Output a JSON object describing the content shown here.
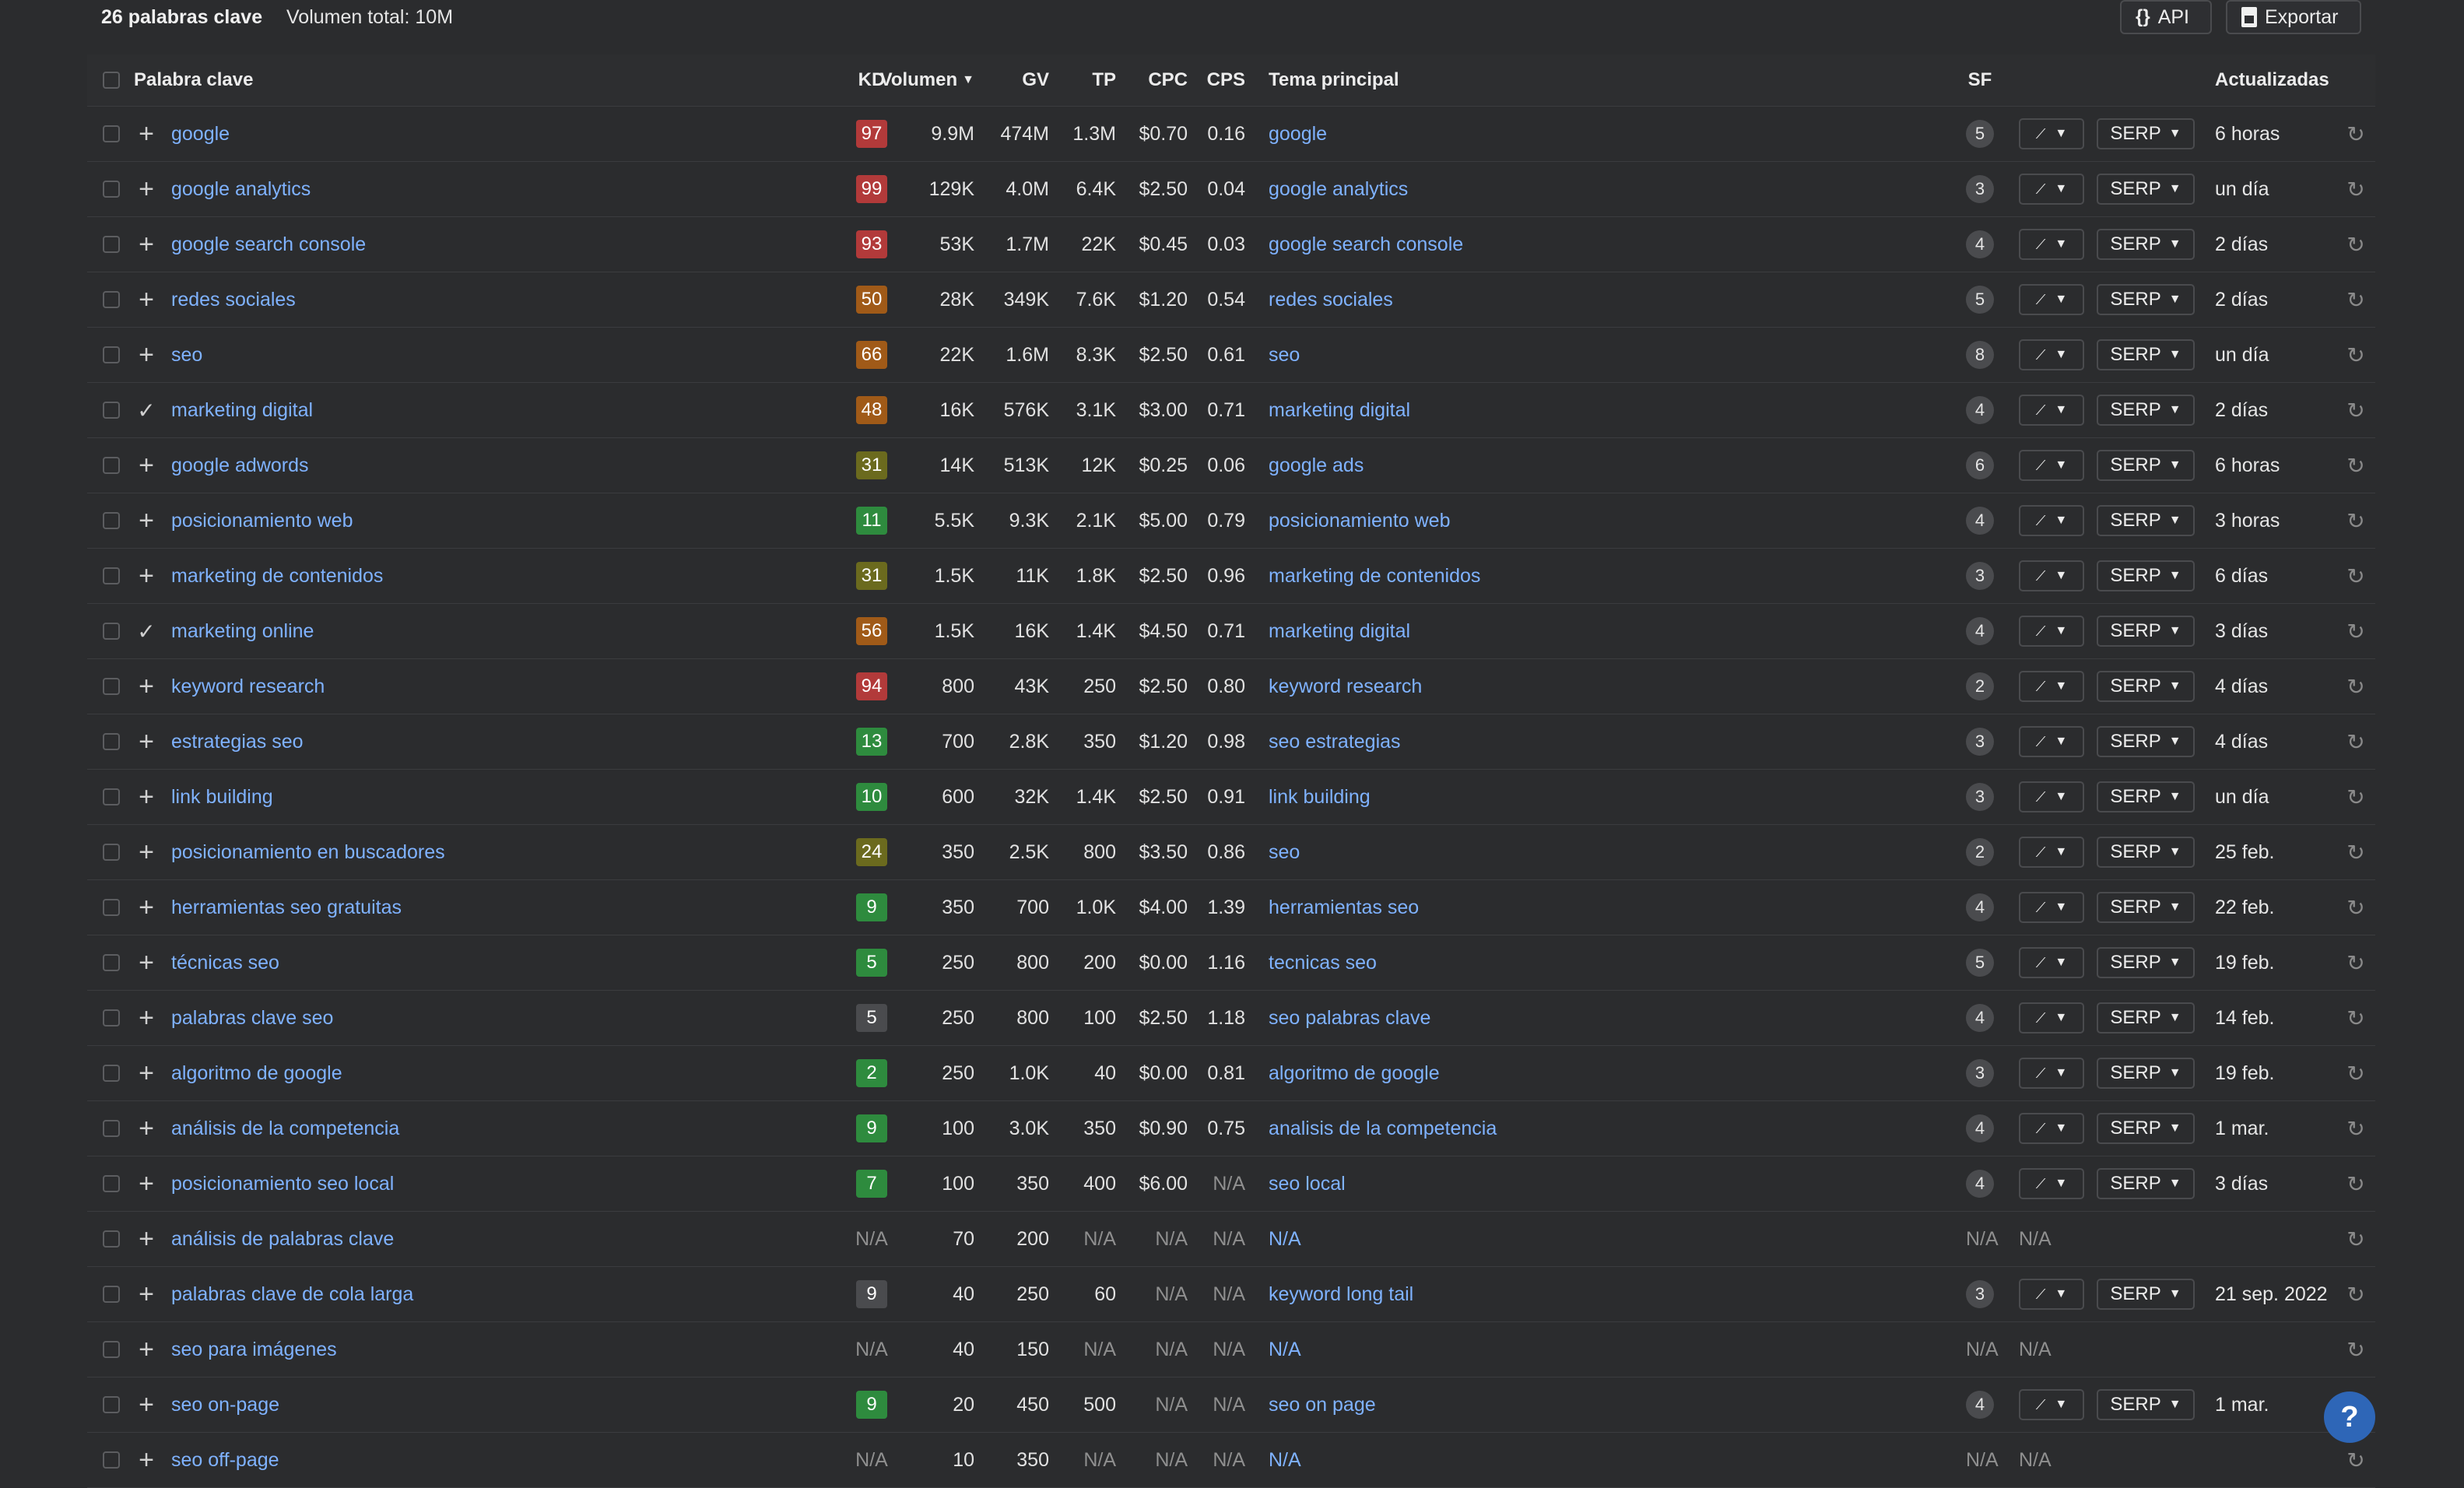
{
  "toolbar": {
    "keyword_count": "26 palabras clave",
    "total_volume": "Volumen total: 10M",
    "api_label": "API",
    "export_label": "Exportar",
    "api_icon": "braces-icon",
    "export_icon": "document-icon"
  },
  "columns": {
    "keyword": "Palabra clave",
    "kd": "KD",
    "volume": "Volumen",
    "gv": "GV",
    "tp": "TP",
    "cpc": "CPC",
    "cps": "CPS",
    "parent_topic": "Tema principal",
    "sf": "SF",
    "updated": "Actualizadas"
  },
  "serp_label": "SERP",
  "na_label": "N/A",
  "help_label": "?",
  "colors": {
    "kd_hard": "#b23a3a",
    "kd_medium": "#a05a18",
    "kd_easy_mid": "#6b6a1e",
    "kd_easy": "#2e8b3e",
    "kd_grey": "#4a4b4e",
    "link": "#7fb2ff",
    "accent_help": "#2e66b7"
  },
  "rows": [
    {
      "action": "+",
      "keyword": "google",
      "kd": "97",
      "kd_color": "#b23a3a",
      "volume": "9.9M",
      "gv": "474M",
      "tp": "1.3M",
      "cpc": "$0.70",
      "cps": "0.16",
      "topic": "google",
      "sf": "5",
      "updated": "6 horas"
    },
    {
      "action": "+",
      "keyword": "google analytics",
      "kd": "99",
      "kd_color": "#b23a3a",
      "volume": "129K",
      "gv": "4.0M",
      "tp": "6.4K",
      "cpc": "$2.50",
      "cps": "0.04",
      "topic": "google analytics",
      "sf": "3",
      "updated": "un día"
    },
    {
      "action": "+",
      "keyword": "google search console",
      "kd": "93",
      "kd_color": "#b23a3a",
      "volume": "53K",
      "gv": "1.7M",
      "tp": "22K",
      "cpc": "$0.45",
      "cps": "0.03",
      "topic": "google search console",
      "sf": "4",
      "updated": "2 días"
    },
    {
      "action": "+",
      "keyword": "redes sociales",
      "kd": "50",
      "kd_color": "#a05a18",
      "volume": "28K",
      "gv": "349K",
      "tp": "7.6K",
      "cpc": "$1.20",
      "cps": "0.54",
      "topic": "redes sociales",
      "sf": "5",
      "updated": "2 días"
    },
    {
      "action": "+",
      "keyword": "seo",
      "kd": "66",
      "kd_color": "#a05a18",
      "volume": "22K",
      "gv": "1.6M",
      "tp": "8.3K",
      "cpc": "$2.50",
      "cps": "0.61",
      "topic": "seo",
      "sf": "8",
      "updated": "un día"
    },
    {
      "action": "✓",
      "keyword": "marketing digital",
      "kd": "48",
      "kd_color": "#a05a18",
      "volume": "16K",
      "gv": "576K",
      "tp": "3.1K",
      "cpc": "$3.00",
      "cps": "0.71",
      "topic": "marketing digital",
      "sf": "4",
      "updated": "2 días"
    },
    {
      "action": "+",
      "keyword": "google adwords",
      "kd": "31",
      "kd_color": "#6b6a1e",
      "volume": "14K",
      "gv": "513K",
      "tp": "12K",
      "cpc": "$0.25",
      "cps": "0.06",
      "topic": "google ads",
      "sf": "6",
      "updated": "6 horas"
    },
    {
      "action": "+",
      "keyword": "posicionamiento web",
      "kd": "11",
      "kd_color": "#2e8b3e",
      "volume": "5.5K",
      "gv": "9.3K",
      "tp": "2.1K",
      "cpc": "$5.00",
      "cps": "0.79",
      "topic": "posicionamiento web",
      "sf": "4",
      "updated": "3 horas"
    },
    {
      "action": "+",
      "keyword": "marketing de contenidos",
      "kd": "31",
      "kd_color": "#6b6a1e",
      "volume": "1.5K",
      "gv": "11K",
      "tp": "1.8K",
      "cpc": "$2.50",
      "cps": "0.96",
      "topic": "marketing de contenidos",
      "sf": "3",
      "updated": "6 días"
    },
    {
      "action": "✓",
      "keyword": "marketing online",
      "kd": "56",
      "kd_color": "#a05a18",
      "volume": "1.5K",
      "gv": "16K",
      "tp": "1.4K",
      "cpc": "$4.50",
      "cps": "0.71",
      "topic": "marketing digital",
      "sf": "4",
      "updated": "3 días"
    },
    {
      "action": "+",
      "keyword": "keyword research",
      "kd": "94",
      "kd_color": "#b23a3a",
      "volume": "800",
      "gv": "43K",
      "tp": "250",
      "cpc": "$2.50",
      "cps": "0.80",
      "topic": "keyword research",
      "sf": "2",
      "updated": "4 días"
    },
    {
      "action": "+",
      "keyword": "estrategias seo",
      "kd": "13",
      "kd_color": "#2e8b3e",
      "volume": "700",
      "gv": "2.8K",
      "tp": "350",
      "cpc": "$1.20",
      "cps": "0.98",
      "topic": "seo estrategias",
      "sf": "3",
      "updated": "4 días"
    },
    {
      "action": "+",
      "keyword": "link building",
      "kd": "10",
      "kd_color": "#2e8b3e",
      "volume": "600",
      "gv": "32K",
      "tp": "1.4K",
      "cpc": "$2.50",
      "cps": "0.91",
      "topic": "link building",
      "sf": "3",
      "updated": "un día"
    },
    {
      "action": "+",
      "keyword": "posicionamiento en buscadores",
      "kd": "24",
      "kd_color": "#6b6a1e",
      "volume": "350",
      "gv": "2.5K",
      "tp": "800",
      "cpc": "$3.50",
      "cps": "0.86",
      "topic": "seo",
      "sf": "2",
      "updated": "25 feb."
    },
    {
      "action": "+",
      "keyword": "herramientas seo gratuitas",
      "kd": "9",
      "kd_color": "#2e8b3e",
      "volume": "350",
      "gv": "700",
      "tp": "1.0K",
      "cpc": "$4.00",
      "cps": "1.39",
      "topic": "herramientas seo",
      "sf": "4",
      "updated": "22 feb."
    },
    {
      "action": "+",
      "keyword": "técnicas seo",
      "kd": "5",
      "kd_color": "#2e8b3e",
      "volume": "250",
      "gv": "800",
      "tp": "200",
      "cpc": "$0.00",
      "cps": "1.16",
      "topic": "tecnicas seo",
      "sf": "5",
      "updated": "19 feb."
    },
    {
      "action": "+",
      "keyword": "palabras clave seo",
      "kd": "5",
      "kd_color": "#4a4b4e",
      "volume": "250",
      "gv": "800",
      "tp": "100",
      "cpc": "$2.50",
      "cps": "1.18",
      "topic": "seo palabras clave",
      "sf": "4",
      "updated": "14 feb."
    },
    {
      "action": "+",
      "keyword": "algoritmo de google",
      "kd": "2",
      "kd_color": "#2e8b3e",
      "volume": "250",
      "gv": "1.0K",
      "tp": "40",
      "cpc": "$0.00",
      "cps": "0.81",
      "topic": "algoritmo de google",
      "sf": "3",
      "updated": "19 feb."
    },
    {
      "action": "+",
      "keyword": "análisis de la competencia",
      "kd": "9",
      "kd_color": "#2e8b3e",
      "volume": "100",
      "gv": "3.0K",
      "tp": "350",
      "cpc": "$0.90",
      "cps": "0.75",
      "topic": "analisis de la competencia",
      "sf": "4",
      "updated": "1 mar."
    },
    {
      "action": "+",
      "keyword": "posicionamiento seo local",
      "kd": "7",
      "kd_color": "#2e8b3e",
      "volume": "100",
      "gv": "350",
      "tp": "400",
      "cpc": "$6.00",
      "cps": "N/A",
      "topic": "seo local",
      "sf": "4",
      "updated": "3 días"
    },
    {
      "action": "+",
      "keyword": "análisis de palabras clave",
      "kd": "N/A",
      "kd_color": "",
      "volume": "70",
      "gv": "200",
      "tp": "N/A",
      "cpc": "N/A",
      "cps": "N/A",
      "topic": "N/A",
      "sf": "N/A",
      "updated": ""
    },
    {
      "action": "+",
      "keyword": "palabras clave de cola larga",
      "kd": "9",
      "kd_color": "#4a4b4e",
      "volume": "40",
      "gv": "250",
      "tp": "60",
      "cpc": "N/A",
      "cps": "N/A",
      "topic": "keyword long tail",
      "sf": "3",
      "updated": "21 sep. 2022"
    },
    {
      "action": "+",
      "keyword": "seo para imágenes",
      "kd": "N/A",
      "kd_color": "",
      "volume": "40",
      "gv": "150",
      "tp": "N/A",
      "cpc": "N/A",
      "cps": "N/A",
      "topic": "N/A",
      "sf": "N/A",
      "updated": ""
    },
    {
      "action": "+",
      "keyword": "seo on-page",
      "kd": "9",
      "kd_color": "#2e8b3e",
      "volume": "20",
      "gv": "450",
      "tp": "500",
      "cpc": "N/A",
      "cps": "N/A",
      "topic": "seo on page",
      "sf": "4",
      "updated": "1 mar."
    },
    {
      "action": "+",
      "keyword": "seo off-page",
      "kd": "N/A",
      "kd_color": "",
      "volume": "10",
      "gv": "350",
      "tp": "N/A",
      "cpc": "N/A",
      "cps": "N/A",
      "topic": "N/A",
      "sf": "N/A",
      "updated": ""
    }
  ]
}
